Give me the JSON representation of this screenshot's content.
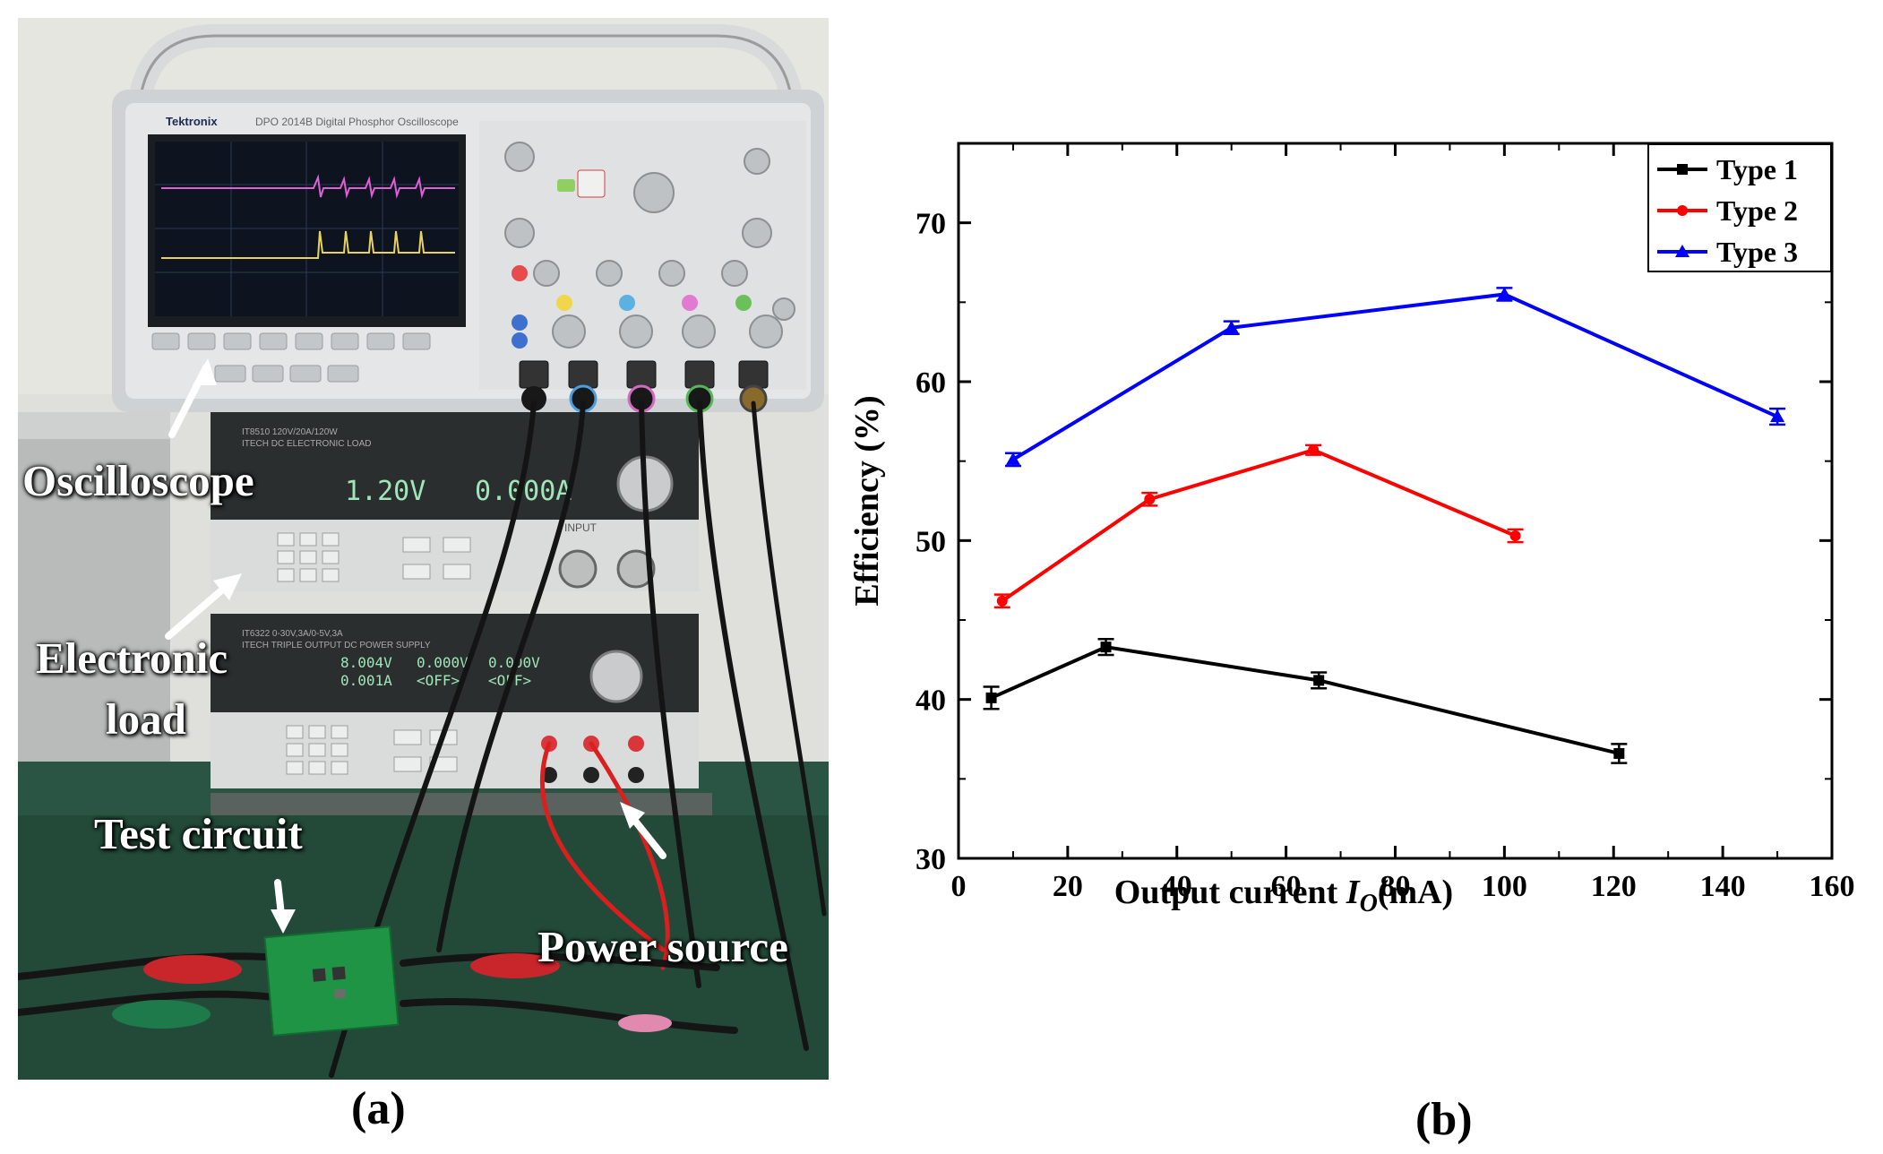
{
  "photo": {
    "labels": {
      "oscilloscope": "Oscilloscope",
      "electronic_load_line1": "Electronic",
      "electronic_load_line2": "load",
      "test_circuit": "Test circuit",
      "power_source": "Power source"
    },
    "instruments": {
      "scope_brand": "Tektronix",
      "scope_model": "DPO 2014B Digital Phosphor Oscilloscope",
      "load_model": "IT8510  120V/20A/120W",
      "load_desc": "ITECH DC ELECTRONIC LOAD",
      "load_voltage": "1.20V",
      "load_current": "0.000A",
      "supply_model": "IT6322  0-30V,3A/0-5V,3A",
      "supply_desc": "ITECH TRIPLE OUTPUT DC POWER SUPPLY",
      "supply_ch1_v": "8.004V",
      "supply_ch1_a": "0.001A",
      "supply_ch2_v": "0.000V",
      "supply_ch2_s": "<OFF>",
      "supply_ch3_v": "0.000V",
      "supply_ch3_s": "<OFF>",
      "input_label": "INPUT"
    },
    "caption": "(a)"
  },
  "chart_caption": "(b)",
  "colors": {
    "type1": "#000000",
    "type2": "#ff0000",
    "type3": "#0000ff"
  },
  "chart_data": {
    "type": "line",
    "xlabel_prefix": "Output current ",
    "xlabel_var": "I",
    "xlabel_sub": "O",
    "xlabel_suffix": "(mA)",
    "ylabel": "Efficiency (%)",
    "xlim": [
      0,
      160
    ],
    "ylim": [
      30,
      75
    ],
    "xticks": [
      0,
      20,
      40,
      60,
      80,
      100,
      120,
      140,
      160
    ],
    "yticks": [
      30,
      40,
      50,
      60,
      70
    ],
    "legend_position": "top-right",
    "grid": false,
    "series": [
      {
        "name": "Type 1",
        "marker": "square",
        "x": [
          6,
          27,
          66,
          121
        ],
        "y": [
          40.1,
          43.3,
          41.2,
          36.6
        ],
        "err": [
          0.7,
          0.5,
          0.5,
          0.6
        ]
      },
      {
        "name": "Type 2",
        "marker": "circle",
        "x": [
          8,
          35,
          65,
          102
        ],
        "y": [
          46.2,
          52.6,
          55.7,
          50.3
        ],
        "err": [
          0.4,
          0.4,
          0.3,
          0.4
        ]
      },
      {
        "name": "Type 3",
        "marker": "triangle",
        "x": [
          10,
          50,
          100,
          150
        ],
        "y": [
          55.1,
          63.4,
          65.5,
          57.8
        ],
        "err": [
          0.4,
          0.4,
          0.4,
          0.5
        ]
      }
    ]
  }
}
